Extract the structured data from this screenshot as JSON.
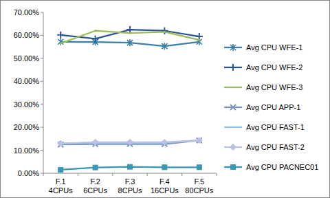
{
  "chart_data": {
    "type": "line",
    "categories": [
      "F.1 4CPUs",
      "F.2 6CPUs",
      "F.3 8CPUs",
      "F.4 16CPUs",
      "F.5 80CPUs"
    ],
    "series": [
      {
        "name": "Avg CPU WFE-1",
        "color": "#3b7fa6",
        "marker": "star",
        "values": [
          57.2,
          57.1,
          56.8,
          55.3,
          57.2
        ]
      },
      {
        "name": "Avg CPU WFE-2",
        "color": "#2c5597",
        "marker": "plus",
        "values": [
          60.2,
          58.5,
          62.5,
          62.0,
          59.5
        ]
      },
      {
        "name": "Avg CPU WFE-3",
        "color": "#9bbb59",
        "marker": "none",
        "values": [
          56.5,
          62.0,
          61.0,
          61.5,
          58.0
        ]
      },
      {
        "name": "Avg CPU APP-1",
        "color": "#7f93c9",
        "marker": "x",
        "values": [
          12.5,
          12.7,
          12.7,
          12.7,
          14.3
        ]
      },
      {
        "name": "Avg CPU FAST-1",
        "color": "#8cc4e0",
        "marker": "none",
        "values": [
          13.0,
          13.3,
          13.3,
          13.3,
          14.3
        ]
      },
      {
        "name": "Avg CPU FAST-2",
        "color": "#b8c2e2",
        "marker": "diamond",
        "values": [
          13.0,
          13.5,
          13.5,
          13.5,
          14.3
        ]
      },
      {
        "name": "Avg CPU PACNEC01",
        "color": "#3798b3",
        "marker": "square",
        "values": [
          1.5,
          2.5,
          2.8,
          2.6,
          2.6
        ]
      }
    ],
    "ylim": [
      0,
      70
    ],
    "yticks": [
      {
        "value": 0,
        "label": "0.00%"
      },
      {
        "value": 10,
        "label": "10.00%"
      },
      {
        "value": 20,
        "label": "20.00%"
      },
      {
        "value": 30,
        "label": "30.00%"
      },
      {
        "value": 40,
        "label": "40.00%"
      },
      {
        "value": 50,
        "label": "50.00%"
      },
      {
        "value": 60,
        "label": "60.00%"
      },
      {
        "value": 70,
        "label": "70.00%"
      }
    ],
    "grid": false,
    "legend": "right"
  }
}
